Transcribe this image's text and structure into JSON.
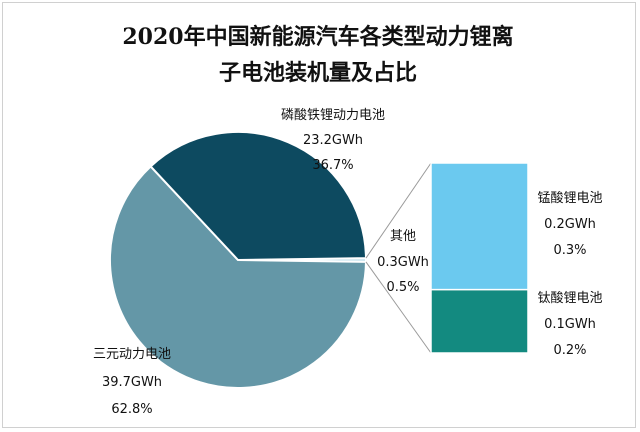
{
  "chart_data": {
    "type": "pie",
    "title_lines": [
      "2020年中国新能源汽车各类型动力锂离",
      "子电池装机量及占比"
    ],
    "slices": [
      {
        "name": "磷酸铁锂动力电池",
        "value_text": "23.2GWh",
        "value": 23.2,
        "percent_text": "36.7%",
        "percent": 36.7,
        "color": "#0d4a60"
      },
      {
        "name": "三元动力电池",
        "value_text": "39.7GWh",
        "value": 39.7,
        "percent_text": "62.8%",
        "percent": 62.8,
        "color": "#6497a7"
      },
      {
        "name": "其他",
        "value_text": "0.3GWh",
        "value": 0.3,
        "percent_text": "0.5%",
        "percent": 0.5,
        "color": "#bfe0ec"
      }
    ],
    "other_breakdown": [
      {
        "name": "锰酸锂电池",
        "value_text": "0.2GWh",
        "value": 0.2,
        "percent_text": "0.3%",
        "percent": 0.3,
        "color": "#6bc9ef"
      },
      {
        "name": "钛酸锂电池",
        "value_text": "0.1GWh",
        "value": 0.1,
        "percent_text": "0.2%",
        "percent": 0.2,
        "color": "#138a80"
      }
    ]
  }
}
